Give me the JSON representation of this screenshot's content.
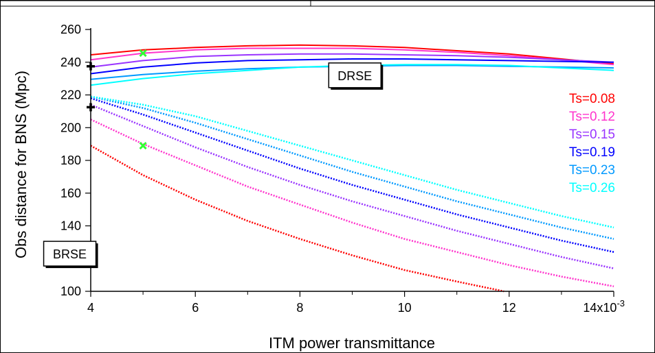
{
  "chart_data": {
    "type": "line",
    "title": "",
    "xlabel": "ITM power transmittance",
    "ylabel": "Obs distance for BNS (Mpc)",
    "x_multiplier_label": "x10",
    "x_multiplier_exp": "-3",
    "xlim": [
      4,
      14
    ],
    "ylim": [
      100,
      260
    ],
    "x_ticks": [
      4,
      6,
      8,
      10,
      12,
      14
    ],
    "y_ticks": [
      100,
      120,
      140,
      160,
      180,
      200,
      220,
      240,
      260
    ],
    "grid": false,
    "legend_position": "right",
    "annotations": [
      {
        "text": "DRSE",
        "x": 9.05,
        "y": 232
      },
      {
        "text": "BRSE",
        "x": 3.6,
        "y": 123
      }
    ],
    "legend": [
      {
        "label": "Ts=0.08",
        "color": "#ff0000"
      },
      {
        "label": "Ts=0.12",
        "color": "#ff33cc"
      },
      {
        "label": "Ts=0.15",
        "color": "#9933ff"
      },
      {
        "label": "Ts=0.19",
        "color": "#0000ff"
      },
      {
        "label": "Ts=0.23",
        "color": "#0099ff"
      },
      {
        "label": "Ts=0.26",
        "color": "#00ffff"
      }
    ],
    "series": [
      {
        "group": "DRSE",
        "style": "solid",
        "color": "#ff0000",
        "x": [
          4,
          5,
          6,
          7,
          8,
          9,
          10,
          11,
          12,
          13,
          14
        ],
        "y": [
          244.5,
          247.5,
          249,
          250,
          250.5,
          250,
          249,
          247,
          245,
          242,
          239
        ]
      },
      {
        "group": "DRSE",
        "style": "solid",
        "color": "#ff33cc",
        "x": [
          4,
          5,
          6,
          7,
          8,
          9,
          10,
          11,
          12,
          13,
          14
        ],
        "y": [
          241.5,
          245.5,
          247.5,
          248.5,
          248.5,
          248.5,
          247.5,
          246,
          244,
          241.5,
          238.5
        ]
      },
      {
        "group": "DRSE",
        "style": "solid",
        "color": "#9933ff",
        "x": [
          4,
          5,
          6,
          7,
          8,
          9,
          10,
          11,
          12,
          13,
          14
        ],
        "y": [
          237,
          241,
          243.5,
          244.5,
          245,
          245,
          244.5,
          244,
          243,
          241.5,
          240
        ]
      },
      {
        "group": "DRSE",
        "style": "solid",
        "color": "#0000ff",
        "x": [
          4,
          5,
          6,
          7,
          8,
          9,
          10,
          11,
          12,
          13,
          14
        ],
        "y": [
          233,
          237,
          239.5,
          241,
          241.5,
          242,
          242,
          241.5,
          241,
          240.5,
          240
        ]
      },
      {
        "group": "DRSE",
        "style": "solid",
        "color": "#0099ff",
        "x": [
          4,
          5,
          6,
          7,
          8,
          9,
          10,
          11,
          12,
          13,
          14
        ],
        "y": [
          229.5,
          232.5,
          234.5,
          236,
          237,
          237.5,
          238,
          238,
          237.5,
          237,
          236.5
        ]
      },
      {
        "group": "DRSE",
        "style": "solid",
        "color": "#00ffff",
        "x": [
          4,
          5,
          6,
          7,
          8,
          9,
          10,
          11,
          12,
          13,
          14
        ],
        "y": [
          226,
          230,
          233,
          235,
          237,
          238,
          238.5,
          238.5,
          238,
          236.5,
          235
        ]
      },
      {
        "group": "BRSE",
        "style": "dotted",
        "color": "#ff0000",
        "x": [
          4,
          5,
          6,
          7,
          8,
          9,
          10,
          11,
          11.9
        ],
        "y": [
          189,
          171,
          156,
          143,
          132,
          122,
          113,
          106,
          100
        ]
      },
      {
        "group": "BRSE",
        "style": "dotted",
        "color": "#ff33cc",
        "x": [
          4,
          5,
          6,
          7,
          8,
          9,
          10,
          11,
          12,
          13,
          14
        ],
        "y": [
          205,
          190,
          177,
          164,
          153,
          142,
          132,
          124,
          116,
          109,
          103
        ]
      },
      {
        "group": "BRSE",
        "style": "dotted",
        "color": "#9933ff",
        "x": [
          4,
          5,
          6,
          7,
          8,
          9,
          10,
          11,
          12,
          13,
          14
        ],
        "y": [
          214,
          201,
          188,
          176,
          165,
          155,
          146,
          137,
          129,
          121,
          114
        ]
      },
      {
        "group": "BRSE",
        "style": "dotted",
        "color": "#0000ff",
        "x": [
          4,
          5,
          6,
          7,
          8,
          9,
          10,
          11,
          12,
          13,
          14
        ],
        "y": [
          218,
          208,
          197,
          186,
          175,
          165,
          156,
          147,
          139,
          131,
          124
        ]
      },
      {
        "group": "BRSE",
        "style": "dotted",
        "color": "#0099ff",
        "x": [
          4,
          5,
          6,
          7,
          8,
          9,
          10,
          11,
          12,
          13,
          14
        ],
        "y": [
          219,
          212,
          203,
          193,
          183,
          173,
          164,
          155,
          147,
          139,
          132
        ]
      },
      {
        "group": "BRSE",
        "style": "dotted",
        "color": "#00ffff",
        "x": [
          4,
          5,
          6,
          7,
          8,
          9,
          10,
          11,
          12,
          13,
          14
        ],
        "y": [
          219,
          214,
          207,
          198,
          189,
          180,
          171,
          162,
          154,
          146,
          139
        ]
      }
    ],
    "markers": [
      {
        "symbol": "plus",
        "color": "#000000",
        "x": 4,
        "y": 237.5
      },
      {
        "symbol": "plus",
        "color": "#000000",
        "x": 4,
        "y": 212.5
      },
      {
        "symbol": "cross",
        "color": "#33ff33",
        "x": 5,
        "y": 245.5
      },
      {
        "symbol": "cross",
        "color": "#33ff33",
        "x": 5,
        "y": 189
      }
    ]
  }
}
